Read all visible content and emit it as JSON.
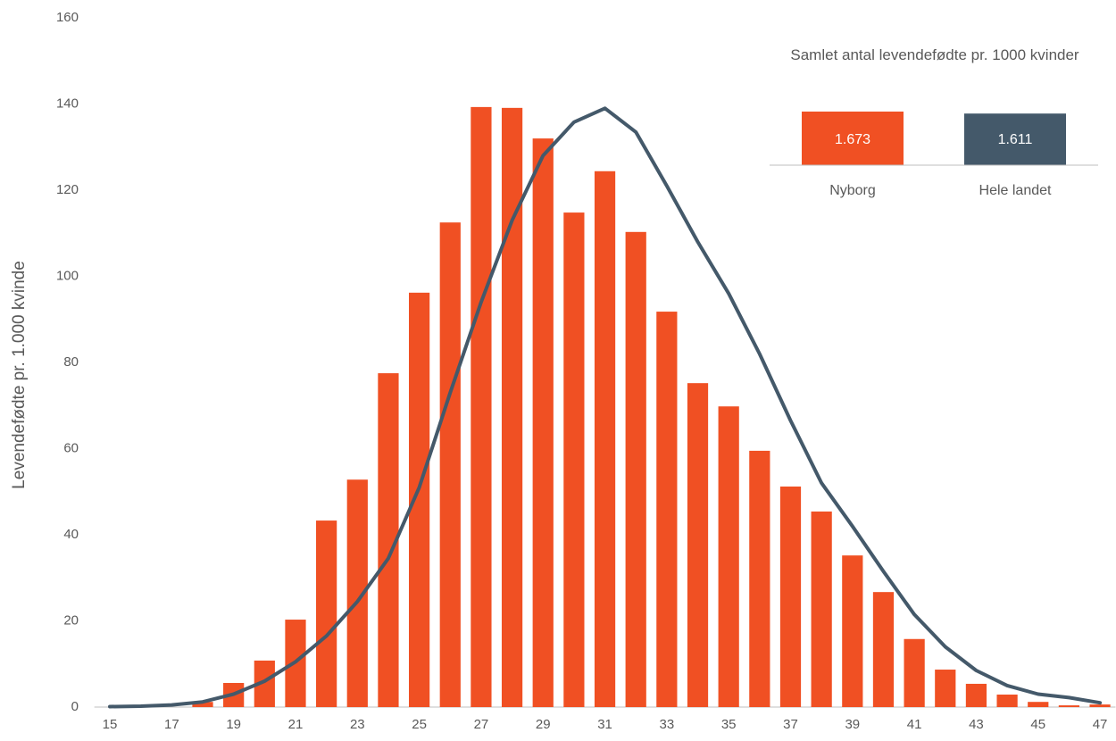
{
  "chart_data": [
    {
      "type": "bar",
      "y_label": "Levendefødte pr. 1.000 kvinde",
      "categories": [
        "15",
        null,
        "17",
        null,
        "19",
        null,
        "21",
        null,
        "23",
        null,
        "25",
        null,
        "27",
        null,
        "29",
        null,
        "31",
        null,
        "33",
        null,
        "35",
        null,
        "37",
        null,
        "39",
        null,
        "41",
        null,
        "43",
        null,
        "45",
        null,
        "47"
      ],
      "series": [
        {
          "type": "bar",
          "color": "#f05023",
          "values": [
            0,
            0,
            0,
            1.2,
            5.6,
            10.8,
            20.3,
            43.3,
            52.8,
            77.5,
            96.2,
            112.5,
            139.3,
            139.1,
            132,
            114.8,
            124.4,
            110.3,
            91.8,
            75.2,
            69.8,
            59.5,
            51.2,
            45.4,
            35.2,
            26.7,
            15.8,
            8.7,
            5.4,
            2.9,
            1.2,
            0.4,
            0.6
          ]
        },
        {
          "type": "line",
          "color": "#44596a",
          "values": [
            0.1,
            0.2,
            0.5,
            1.2,
            3,
            6,
            10.5,
            16.5,
            24.5,
            34.5,
            51,
            73,
            94,
            113,
            128,
            135.8,
            139,
            133.5,
            121,
            108,
            96,
            82,
            66.5,
            52,
            42,
            31.5,
            21.5,
            14,
            8.5,
            5,
            3,
            2.2,
            1
          ]
        }
      ],
      "ylim": [
        0,
        160
      ],
      "yticks": [
        0,
        20,
        40,
        60,
        80,
        100,
        120,
        140,
        160
      ],
      "grid": false
    },
    {
      "type": "bar",
      "title": "Samlet antal levendefødte pr. 1000 kvinder",
      "categories": [
        "Nyborg",
        "Hele landet"
      ],
      "values": [
        1673,
        1611
      ],
      "value_labels": [
        "1.673",
        "1.611"
      ],
      "colors": [
        "#f05023",
        "#44596a"
      ],
      "ylim": [
        0,
        1750
      ]
    }
  ]
}
